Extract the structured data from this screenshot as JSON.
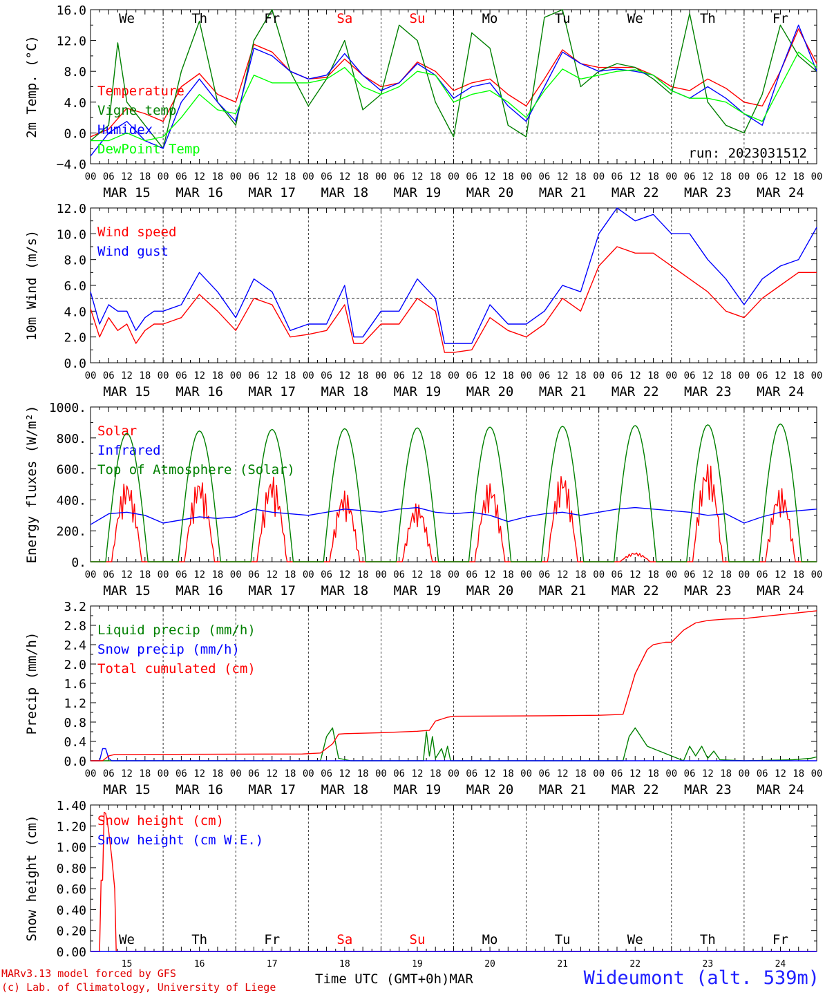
{
  "chart_data": [
    {
      "type": "line",
      "ylabel": "2m Temp. (°C)",
      "ylim": [
        -4,
        16
      ],
      "yticks": [
        "−4.0",
        "0.0",
        "4.0",
        "8.0",
        "12.0",
        "16.0"
      ],
      "ytick_values": [
        -4,
        0,
        4,
        8,
        12,
        16
      ],
      "ref_line": 0,
      "top_labels": [
        "We",
        "Th",
        "Fr",
        "Sa",
        "Su",
        "Mo",
        "Tu",
        "We",
        "Th",
        "Fr"
      ],
      "annotation": "run: 2023031512",
      "series": [
        {
          "name": "Temperature",
          "color": "#ff0000",
          "x": [
            0,
            6,
            12,
            18,
            24,
            30,
            36,
            42,
            48,
            54,
            60,
            66,
            72,
            78,
            84,
            90,
            96,
            102,
            108,
            114,
            120,
            126,
            132,
            138,
            144,
            150,
            156,
            162,
            168,
            174,
            180,
            186,
            192,
            198,
            204,
            210,
            216,
            222,
            228,
            234,
            240
          ],
          "y": [
            -0.5,
            0.5,
            3.2,
            2.5,
            1.5,
            6,
            7.7,
            5,
            4,
            11.5,
            10.5,
            8,
            7,
            7.2,
            9.6,
            7.5,
            6,
            6.5,
            9.2,
            8,
            5.5,
            6.5,
            7,
            5,
            3.5,
            7,
            10.8,
            9,
            8.5,
            8.5,
            8.5,
            7.5,
            6,
            5.5,
            7,
            5.8,
            4,
            3.5,
            8,
            13.5,
            9
          ]
        },
        {
          "name": "Vigne temp",
          "color": "#008000",
          "x": [
            0,
            6,
            9,
            12,
            18,
            24,
            30,
            36,
            42,
            48,
            54,
            60,
            66,
            72,
            78,
            84,
            90,
            96,
            102,
            108,
            114,
            120,
            126,
            132,
            138,
            144,
            150,
            156,
            162,
            168,
            174,
            180,
            186,
            192,
            198,
            204,
            210,
            216,
            222,
            228,
            234,
            240
          ],
          "y": [
            -1,
            1,
            11.7,
            4,
            1,
            -2,
            8,
            14.5,
            4,
            1,
            12,
            16,
            8,
            3.5,
            7,
            12,
            3,
            5,
            14,
            12,
            4,
            -0.5,
            13,
            11,
            1,
            -0.5,
            15,
            16,
            6,
            8,
            9,
            8.5,
            7,
            5,
            15.5,
            4,
            1,
            0,
            5,
            14,
            10,
            8
          ]
        },
        {
          "name": "Humidex",
          "color": "#0000ff",
          "x": [
            0,
            6,
            12,
            18,
            24,
            30,
            36,
            42,
            48,
            54,
            60,
            66,
            72,
            78,
            84,
            90,
            96,
            102,
            108,
            114,
            120,
            126,
            132,
            138,
            144,
            150,
            156,
            162,
            168,
            174,
            180,
            186,
            192,
            198,
            204,
            210,
            216,
            222,
            228,
            234,
            240
          ],
          "y": [
            -3,
            0,
            1.5,
            -1,
            -2,
            4,
            7,
            4,
            1.5,
            11,
            10,
            8,
            7,
            7.5,
            10.3,
            7.5,
            5.5,
            6.5,
            9,
            7.5,
            4.5,
            6,
            6.5,
            3.5,
            1.5,
            6,
            10.5,
            9,
            8,
            8.3,
            8,
            7.5,
            5.5,
            4.5,
            6,
            4.5,
            2.5,
            1,
            8,
            14,
            8
          ]
        },
        {
          "name": "DewPoint Temp",
          "color": "#00ff00",
          "x": [
            0,
            6,
            12,
            18,
            24,
            30,
            36,
            42,
            48,
            54,
            60,
            66,
            72,
            78,
            84,
            90,
            96,
            102,
            108,
            114,
            120,
            126,
            132,
            138,
            144,
            150,
            156,
            162,
            168,
            174,
            180,
            186,
            192,
            198,
            204,
            210,
            216,
            222,
            228,
            234,
            240
          ],
          "y": [
            -1,
            -1,
            0,
            -1,
            -0.5,
            2,
            5,
            3,
            2.5,
            7.5,
            6.5,
            6.5,
            6.5,
            7,
            8.5,
            6,
            5,
            6,
            8,
            7.5,
            4,
            5,
            5.5,
            4,
            2,
            5.5,
            8.3,
            7,
            7.5,
            8,
            8.2,
            7.5,
            5.5,
            4.5,
            4.5,
            4,
            2.5,
            1.5,
            6,
            10.5,
            8.5
          ]
        }
      ]
    },
    {
      "type": "line",
      "ylabel": "10m Wind (m/s)",
      "ylim": [
        0,
        12
      ],
      "yticks": [
        "0.0",
        "2.0",
        "4.0",
        "6.0",
        "8.0",
        "10.0",
        "12.0"
      ],
      "ytick_values": [
        0,
        2,
        4,
        6,
        8,
        10,
        12
      ],
      "ref_line": 5,
      "series": [
        {
          "name": "Wind speed",
          "color": "#ff0000",
          "x": [
            0,
            3,
            6,
            9,
            12,
            15,
            18,
            21,
            24,
            30,
            36,
            42,
            48,
            54,
            60,
            66,
            72,
            78,
            84,
            87,
            90,
            96,
            102,
            108,
            114,
            117,
            120,
            126,
            132,
            138,
            144,
            150,
            156,
            162,
            168,
            174,
            180,
            186,
            192,
            198,
            204,
            210,
            216,
            222,
            228,
            234,
            240
          ],
          "y": [
            4.2,
            2,
            3.5,
            2.5,
            3,
            1.5,
            2.5,
            3,
            3,
            3.5,
            5.3,
            4,
            2.5,
            5,
            4.5,
            2,
            2.2,
            2.5,
            4.5,
            1.5,
            1.5,
            3,
            3,
            5,
            4,
            0.8,
            0.8,
            1,
            3.5,
            2.5,
            2,
            3,
            5,
            4,
            7.5,
            9,
            8.5,
            8.5,
            7.5,
            6.5,
            5.5,
            4,
            3.5,
            5,
            6,
            7,
            7
          ]
        },
        {
          "name": "Wind gust",
          "color": "#0000ff",
          "x": [
            0,
            3,
            6,
            9,
            12,
            15,
            18,
            21,
            24,
            30,
            36,
            42,
            48,
            54,
            60,
            66,
            72,
            78,
            84,
            87,
            90,
            96,
            102,
            108,
            114,
            117,
            120,
            126,
            132,
            138,
            144,
            150,
            156,
            162,
            168,
            174,
            180,
            186,
            192,
            198,
            204,
            210,
            216,
            222,
            228,
            234,
            240
          ],
          "y": [
            5.5,
            3,
            4.5,
            4,
            4,
            2.5,
            3.5,
            4,
            4,
            4.5,
            7,
            5.5,
            3.5,
            6.5,
            5.5,
            2.5,
            3,
            3,
            6,
            2,
            2,
            4,
            4,
            6.5,
            5,
            1.5,
            1.5,
            1.5,
            4.5,
            3,
            3,
            4,
            6,
            5.5,
            10,
            12,
            11,
            11.5,
            10,
            10,
            8,
            6.5,
            4.5,
            6.5,
            7.5,
            8,
            10.5
          ]
        }
      ]
    },
    {
      "type": "line",
      "ylabel": "Energy fluxes (W/m²)",
      "ylim": [
        0,
        1000
      ],
      "yticks": [
        "0.",
        "200.",
        "400.",
        "600.",
        "800.",
        "1000."
      ],
      "ytick_values": [
        0,
        200,
        400,
        600,
        800,
        1000
      ],
      "series": [
        {
          "name": "Solar",
          "color": "#ff0000",
          "peaks": [
            530,
            545,
            560,
            460,
            380,
            520,
            580,
            60,
            650,
            480
          ]
        },
        {
          "name": "Infrared",
          "color": "#0000ff",
          "x": [
            0,
            6,
            12,
            18,
            24,
            30,
            36,
            42,
            48,
            54,
            60,
            66,
            72,
            78,
            84,
            90,
            96,
            102,
            108,
            114,
            120,
            126,
            132,
            138,
            144,
            150,
            156,
            162,
            168,
            174,
            180,
            186,
            192,
            198,
            204,
            210,
            216,
            222,
            228,
            234,
            240
          ],
          "y": [
            240,
            310,
            320,
            300,
            250,
            270,
            290,
            280,
            290,
            340,
            320,
            310,
            300,
            320,
            340,
            330,
            320,
            340,
            350,
            320,
            310,
            320,
            300,
            260,
            290,
            310,
            320,
            300,
            320,
            340,
            350,
            340,
            330,
            320,
            300,
            310,
            250,
            290,
            320,
            330,
            340
          ]
        },
        {
          "name": "Top of Atmosphere (Solar)",
          "color": "#008000",
          "peaks": [
            830,
            845,
            855,
            860,
            865,
            870,
            875,
            880,
            885,
            890
          ]
        }
      ]
    },
    {
      "type": "line",
      "ylabel": "Precip (mm/h)",
      "ylim": [
        0,
        3.2
      ],
      "yticks": [
        "0.0",
        "0.4",
        "0.8",
        "1.2",
        "1.6",
        "2.0",
        "2.4",
        "2.8",
        "3.2"
      ],
      "ytick_values": [
        0,
        0.4,
        0.8,
        1.2,
        1.6,
        2.0,
        2.4,
        2.8,
        3.2
      ],
      "series": [
        {
          "name": "Liquid precip (mm/h)",
          "color": "#008000",
          "x": [
            0,
            76,
            78,
            80,
            82,
            86,
            110,
            111,
            112,
            113,
            114,
            116,
            117,
            118,
            119,
            120,
            176,
            178,
            180,
            184,
            188,
            192,
            196,
            198,
            200,
            202,
            204,
            206,
            208,
            216,
            232,
            238,
            240
          ],
          "y": [
            0,
            0,
            0.5,
            0.68,
            0.05,
            0,
            0,
            0.6,
            0.1,
            0.5,
            0.05,
            0.25,
            0.05,
            0.3,
            0,
            0,
            0,
            0.5,
            0.68,
            0.3,
            0.2,
            0.1,
            0,
            0.3,
            0.1,
            0.3,
            0.05,
            0.2,
            0.02,
            0,
            0.02,
            0.05,
            0.08
          ]
        },
        {
          "name": "Snow precip (mm/h)",
          "color": "#0000ff",
          "x": [
            0,
            3,
            4,
            5,
            6,
            7,
            240
          ],
          "y": [
            0,
            0,
            0.25,
            0.25,
            0.05,
            0,
            0
          ]
        },
        {
          "name": "Total cumulated (cm)",
          "color": "#ff0000",
          "x": [
            0,
            4,
            6,
            8,
            70,
            76,
            80,
            82,
            84,
            96,
            108,
            112,
            114,
            118,
            120,
            150,
            168,
            176,
            180,
            184,
            186,
            190,
            192,
            196,
            200,
            204,
            208,
            210,
            216,
            240
          ],
          "y": [
            0,
            0,
            0.1,
            0.13,
            0.14,
            0.16,
            0.35,
            0.55,
            0.56,
            0.58,
            0.61,
            0.63,
            0.82,
            0.9,
            0.92,
            0.93,
            0.94,
            0.96,
            1.8,
            2.3,
            2.4,
            2.45,
            2.45,
            2.7,
            2.85,
            2.9,
            2.92,
            2.93,
            2.94,
            3.1
          ]
        }
      ]
    },
    {
      "type": "line",
      "ylabel": "Snow height (cm)",
      "ylim": [
        0,
        1.4
      ],
      "yticks": [
        "0.00",
        "0.20",
        "0.40",
        "0.60",
        "0.80",
        "1.00",
        "1.20",
        "1.40"
      ],
      "ytick_values": [
        0,
        0.2,
        0.4,
        0.6,
        0.8,
        1.0,
        1.2,
        1.4
      ],
      "top_labels": [
        "We",
        "Th",
        "Fr",
        "Sa",
        "Su",
        "Mo",
        "Tu",
        "We",
        "Th",
        "Fr"
      ],
      "series": [
        {
          "name": "Snow height (cm)",
          "color": "#ff0000",
          "x": [
            0,
            3,
            3.5,
            4,
            4.5,
            5,
            5.5,
            6,
            7,
            8,
            8.5,
            9,
            240
          ],
          "y": [
            0,
            0,
            0.68,
            0.68,
            1.33,
            1.32,
            1.25,
            1.15,
            0.9,
            0.6,
            0,
            0,
            0
          ]
        },
        {
          "name": "Snow height (cm W.E.)",
          "color": "#0000ff",
          "x": [
            0,
            240
          ],
          "y": [
            0,
            0
          ]
        }
      ]
    }
  ],
  "hour_ticks": [
    "00",
    "06",
    "12",
    "18"
  ],
  "end_tick": "00",
  "date_labels": [
    "MAR 15",
    "MAR 16",
    "MAR 17",
    "MAR 18",
    "MAR 19",
    "MAR 20",
    "MAR 21",
    "MAR 22",
    "MAR 23",
    "MAR 24"
  ],
  "day_numbers": [
    "15",
    "16",
    "17",
    "18",
    "19",
    "20",
    "21",
    "22",
    "23",
    "24"
  ],
  "weekend_color": "#ff0000",
  "weekday_color": "#000000",
  "footer": {
    "credit_line1": "MARv3.13 model forced by GFS",
    "credit_line2": "(c) Lab. of Climatology, University of Liege",
    "x_title": "Time UTC (GMT+0h)MAR",
    "station": "Wideumont (alt. 539m)"
  }
}
